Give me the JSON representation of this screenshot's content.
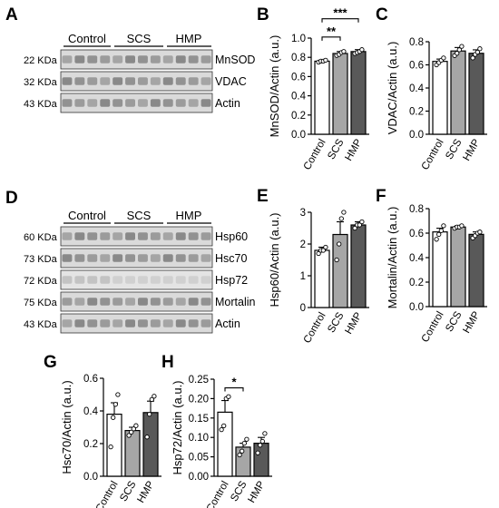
{
  "panel_letters": {
    "A": "A",
    "B": "B",
    "C": "C",
    "D": "D",
    "E": "E",
    "F": "F",
    "G": "G",
    "H": "H"
  },
  "blot_A": {
    "groups": [
      "Control",
      "SCS",
      "HMP"
    ],
    "rows": [
      {
        "kda": "22 KDa",
        "protein": "MnSOD"
      },
      {
        "kda": "32 KDa",
        "protein": "VDAC"
      },
      {
        "kda": "43 KDa",
        "protein": "Actin"
      }
    ]
  },
  "blot_D": {
    "groups": [
      "Control",
      "SCS",
      "HMP"
    ],
    "rows": [
      {
        "kda": "60 KDa",
        "protein": "Hsp60"
      },
      {
        "kda": "73 KDa",
        "protein": "Hsc70"
      },
      {
        "kda": "72 KDa",
        "protein": "Hsp72"
      },
      {
        "kda": "75 KDa",
        "protein": "Mortalin"
      },
      {
        "kda": "43 KDa",
        "protein": "Actin"
      }
    ]
  },
  "colors": {
    "control": "#ffffff",
    "scs": "#a6a6a6",
    "hmp": "#595959",
    "band": "#6e6e6e",
    "blot_bg": "#dadada"
  },
  "chart_data": [
    {
      "id": "B",
      "type": "bar",
      "categories": [
        "Control",
        "SCS",
        "HMP"
      ],
      "values": [
        0.76,
        0.84,
        0.86
      ],
      "errors": [
        0.01,
        0.02,
        0.02
      ],
      "points": [
        [
          0.75,
          0.76,
          0.76,
          0.77
        ],
        [
          0.82,
          0.83,
          0.85,
          0.86
        ],
        [
          0.84,
          0.85,
          0.86,
          0.88
        ]
      ],
      "ylabel": "MnSOD/Actin (a.u.)",
      "ylim": [
        0,
        1.0
      ],
      "yticks": [
        "0.0",
        "0.2",
        "0.4",
        "0.6",
        "0.8",
        "1.0"
      ],
      "significance": [
        {
          "from": 0,
          "to": 1,
          "label": "**"
        },
        {
          "from": 0,
          "to": 2,
          "label": "***"
        }
      ]
    },
    {
      "id": "C",
      "type": "bar",
      "categories": [
        "Control",
        "SCS",
        "HMP"
      ],
      "values": [
        0.63,
        0.72,
        0.7
      ],
      "errors": [
        0.02,
        0.03,
        0.03
      ],
      "points": [
        [
          0.6,
          0.62,
          0.64,
          0.66
        ],
        [
          0.68,
          0.7,
          0.73,
          0.76
        ],
        [
          0.66,
          0.69,
          0.71,
          0.74
        ]
      ],
      "ylabel": "VDAC/Actin (a.u.)",
      "ylim": [
        0,
        0.8
      ],
      "yticks": [
        "0.0",
        "0.2",
        "0.4",
        "0.6",
        "0.8"
      ],
      "significance": []
    },
    {
      "id": "E",
      "type": "bar",
      "categories": [
        "Control",
        "SCS",
        "HMP"
      ],
      "values": [
        1.8,
        2.3,
        2.6
      ],
      "errors": [
        0.1,
        0.4,
        0.1
      ],
      "points": [
        [
          1.7,
          1.8,
          1.8,
          1.9
        ],
        [
          1.5,
          2.0,
          2.8,
          3.0
        ],
        [
          2.5,
          2.6,
          2.6,
          2.7
        ]
      ],
      "ylabel": "Hsp60/Actin (a.u.)",
      "ylim": [
        0,
        3
      ],
      "yticks": [
        "0",
        "1",
        "2",
        "3"
      ],
      "significance": []
    },
    {
      "id": "F",
      "type": "bar",
      "categories": [
        "Control",
        "SCS",
        "HMP"
      ],
      "values": [
        0.61,
        0.65,
        0.59
      ],
      "errors": [
        0.03,
        0.01,
        0.02
      ],
      "points": [
        [
          0.55,
          0.59,
          0.62,
          0.66
        ],
        [
          0.64,
          0.65,
          0.65,
          0.66
        ],
        [
          0.56,
          0.58,
          0.6,
          0.61
        ]
      ],
      "ylabel": "Mortalin/Actin (a.u.)",
      "ylim": [
        0,
        0.8
      ],
      "yticks": [
        "0.0",
        "0.2",
        "0.4",
        "0.6",
        "0.8"
      ],
      "significance": []
    },
    {
      "id": "G",
      "type": "bar",
      "categories": [
        "Control",
        "SCS",
        "HMP"
      ],
      "values": [
        0.38,
        0.28,
        0.39
      ],
      "errors": [
        0.07,
        0.02,
        0.07
      ],
      "points": [
        [
          0.18,
          0.36,
          0.44,
          0.5
        ],
        [
          0.25,
          0.27,
          0.29,
          0.31
        ],
        [
          0.24,
          0.38,
          0.47,
          0.49
        ]
      ],
      "ylabel": "Hsc70/Actin (a.u.)",
      "ylim": [
        0,
        0.6
      ],
      "yticks": [
        "0.0",
        "0.2",
        "0.4",
        "0.6"
      ],
      "significance": []
    },
    {
      "id": "H",
      "type": "bar",
      "categories": [
        "Control",
        "SCS",
        "HMP"
      ],
      "values": [
        0.165,
        0.075,
        0.085
      ],
      "errors": [
        0.03,
        0.01,
        0.015
      ],
      "points": [
        [
          0.12,
          0.13,
          0.2,
          0.205
        ],
        [
          0.055,
          0.065,
          0.085,
          0.095
        ],
        [
          0.06,
          0.08,
          0.09,
          0.11
        ]
      ],
      "ylabel": "Hsp72/Actin (a.u.)",
      "ylim": [
        0,
        0.25
      ],
      "yticks": [
        "0.00",
        "0.05",
        "0.10",
        "0.15",
        "0.20",
        "0.25"
      ],
      "significance": [
        {
          "from": 0,
          "to": 1,
          "label": "*"
        }
      ]
    }
  ]
}
